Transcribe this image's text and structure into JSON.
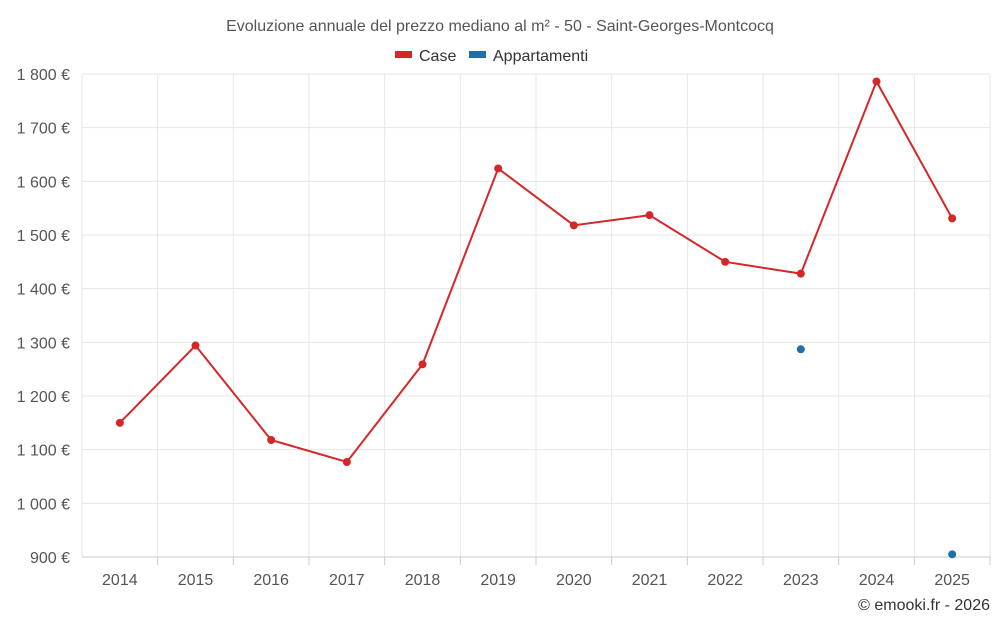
{
  "chart_data": {
    "type": "line",
    "title": "Evoluzione annuale del prezzo mediano al m² - 50 - Saint-Georges-Montcocq",
    "categories": [
      "2014",
      "2015",
      "2016",
      "2017",
      "2018",
      "2019",
      "2020",
      "2021",
      "2022",
      "2023",
      "2024",
      "2025"
    ],
    "series": [
      {
        "name": "Case",
        "color": "#d62728",
        "values": [
          1150,
          1294,
          1118,
          1077,
          1259,
          1624,
          1518,
          1537,
          1450,
          1428,
          1786,
          1531
        ]
      },
      {
        "name": "Appartamenti",
        "color": "#1f6fa8",
        "values": [
          null,
          null,
          null,
          null,
          null,
          null,
          null,
          null,
          null,
          1287,
          null,
          905
        ]
      }
    ],
    "ylim": [
      900,
      1800
    ],
    "yticks": [
      900,
      1000,
      1100,
      1200,
      1300,
      1400,
      1500,
      1600,
      1700,
      1800
    ],
    "ytick_labels": [
      "900 €",
      "1 000 €",
      "1 100 €",
      "1 200 €",
      "1 300 €",
      "1 400 €",
      "1 500 €",
      "1 600 €",
      "1 700 €",
      "1 800 €"
    ],
    "xlabel": "",
    "ylabel": "",
    "grid": true,
    "legend_position": "top-center"
  },
  "credit": "© emooki.fr - 2026"
}
